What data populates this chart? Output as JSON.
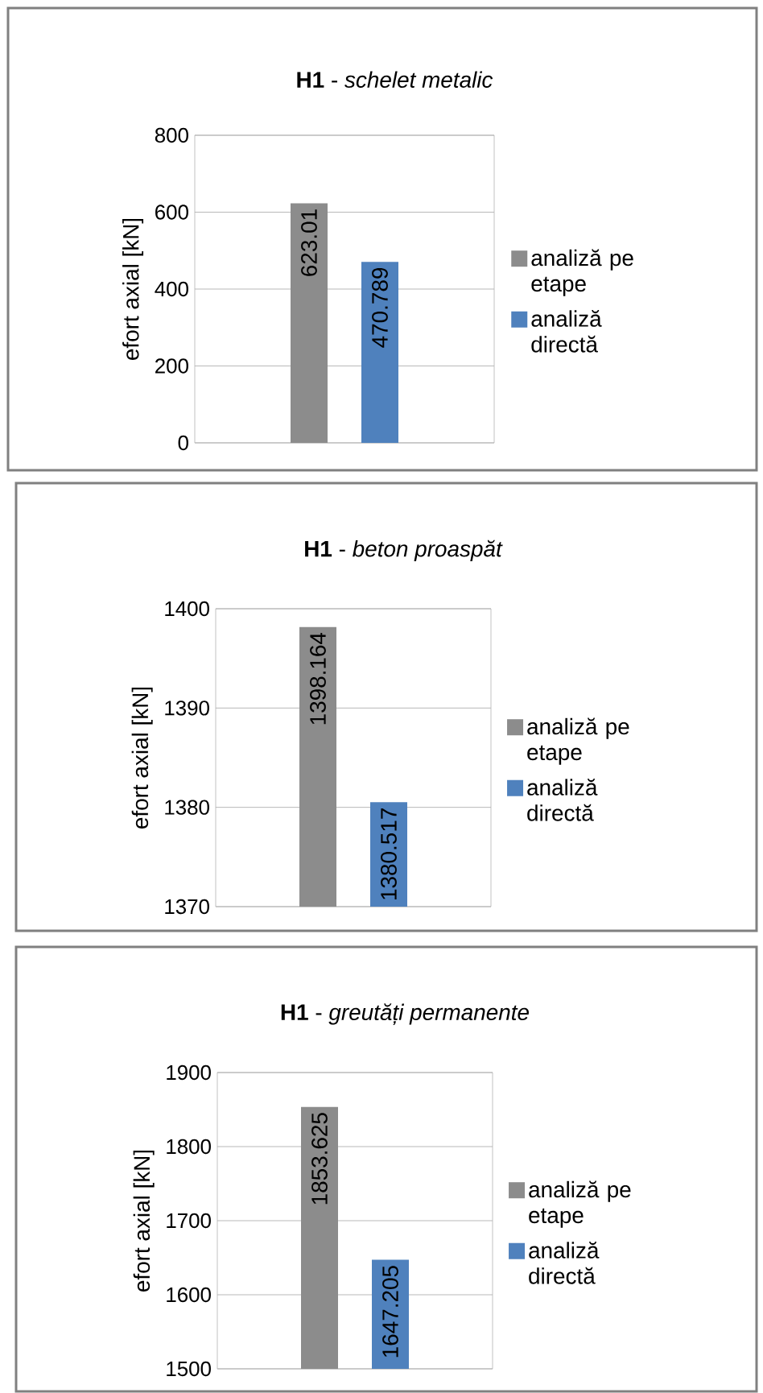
{
  "chart_data": [
    {
      "type": "bar",
      "title": "**H1** - *schelet metalic*",
      "ylabel": "efort axial [kN]",
      "categories": [
        null
      ],
      "series": [
        {
          "name": "analiză pe etape",
          "color": "#8c8c8c",
          "values": [
            623.01
          ]
        },
        {
          "name": "analiză directă",
          "color": "#4f81bd",
          "values": [
            470.789
          ]
        }
      ],
      "ylim": [
        0,
        800
      ],
      "yticks": [
        0,
        200,
        400,
        600,
        800
      ],
      "grid": "y",
      "legend": "right",
      "data_labels": true
    },
    {
      "type": "bar",
      "title": "**H1** - *beton proaspăt*",
      "ylabel": "efort axial [kN]",
      "categories": [
        null
      ],
      "series": [
        {
          "name": "analiză pe etape",
          "color": "#8c8c8c",
          "values": [
            1398.164
          ]
        },
        {
          "name": "analiză directă",
          "color": "#4f81bd",
          "values": [
            1380.517
          ]
        }
      ],
      "ylim": [
        1370,
        1400
      ],
      "yticks": [
        1370,
        1380,
        1390,
        1400
      ],
      "grid": "y",
      "legend": "right",
      "data_labels": true
    },
    {
      "type": "bar",
      "title": "**H1** - *greutăți permanente*",
      "ylabel": "efort axial [kN]",
      "categories": [
        null
      ],
      "series": [
        {
          "name": "analiză pe etape",
          "color": "#8c8c8c",
          "values": [
            1853.625
          ]
        },
        {
          "name": "analiză directă",
          "color": "#4f81bd",
          "values": [
            1647.205
          ]
        }
      ],
      "ylim": [
        1500,
        1900
      ],
      "yticks": [
        1500,
        1600,
        1700,
        1800,
        1900
      ],
      "grid": "y",
      "legend": "right",
      "data_labels": true
    }
  ]
}
